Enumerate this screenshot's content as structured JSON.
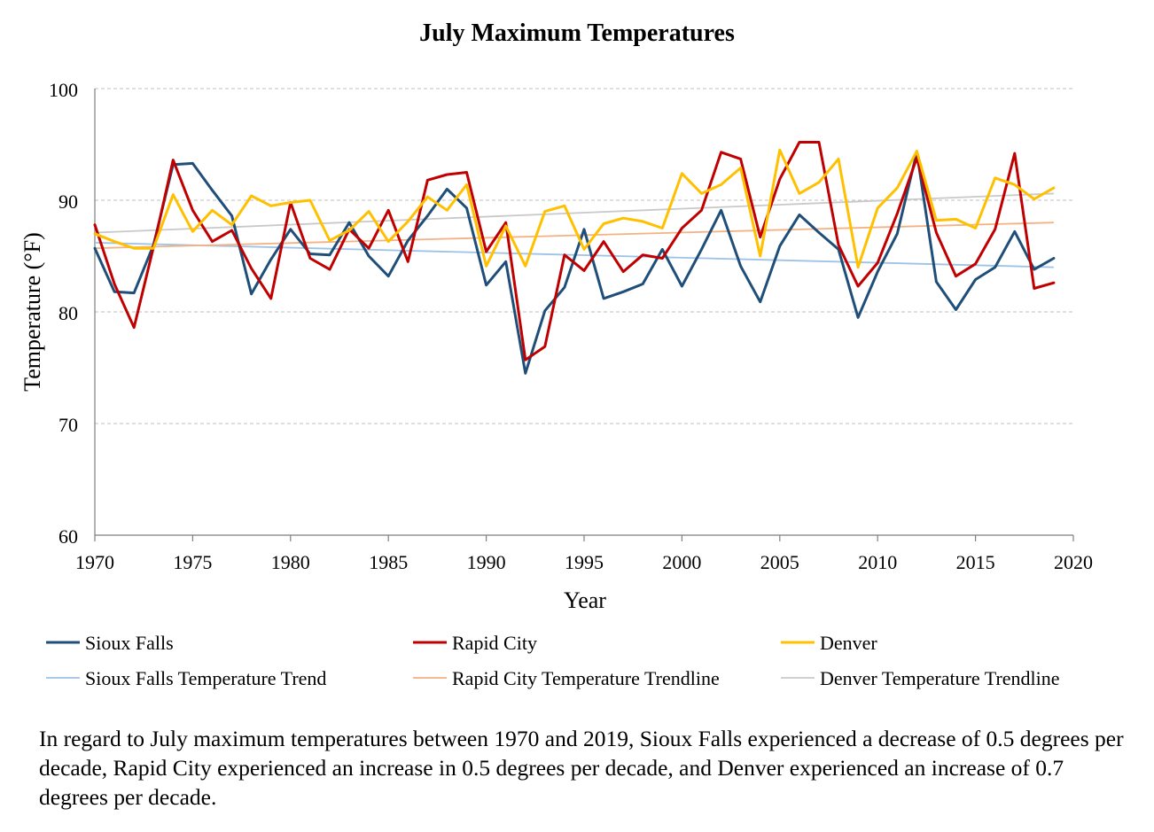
{
  "chart_data": {
    "type": "line",
    "title": "July Maximum Temperatures",
    "xlabel": "Year",
    "ylabel": "Temperature (°F)",
    "xlim": [
      1970,
      2020
    ],
    "ylim": [
      60,
      100
    ],
    "xticks": [
      1970,
      1975,
      1980,
      1985,
      1990,
      1995,
      2000,
      2005,
      2010,
      2015,
      2020
    ],
    "yticks": [
      60,
      70,
      80,
      90,
      100
    ],
    "grid": "horizontal dashed",
    "legend_position": "bottom",
    "x": [
      1970,
      1971,
      1972,
      1973,
      1974,
      1975,
      1976,
      1977,
      1978,
      1979,
      1980,
      1981,
      1982,
      1983,
      1984,
      1985,
      1986,
      1987,
      1988,
      1989,
      1990,
      1991,
      1992,
      1993,
      1994,
      1995,
      1996,
      1997,
      1998,
      1999,
      2000,
      2001,
      2002,
      2003,
      2004,
      2005,
      2006,
      2007,
      2008,
      2009,
      2010,
      2011,
      2012,
      2013,
      2014,
      2015,
      2016,
      2017,
      2018,
      2019
    ],
    "series": [
      {
        "name": "Sioux Falls",
        "color": "#1f4e79",
        "values": [
          85.7,
          81.8,
          81.7,
          86.0,
          93.2,
          93.3,
          90.9,
          88.6,
          81.6,
          84.7,
          87.4,
          85.2,
          85.1,
          88.0,
          85.0,
          83.2,
          86.4,
          88.6,
          91.0,
          89.3,
          82.4,
          84.5,
          74.5,
          80.1,
          82.2,
          87.4,
          81.2,
          81.8,
          82.5,
          85.6,
          82.3,
          85.6,
          89.1,
          84.1,
          80.9,
          85.9,
          88.7,
          87.1,
          85.6,
          79.5,
          83.6,
          87.0,
          94.3,
          82.7,
          80.2,
          82.9,
          84.0,
          87.2,
          83.8,
          84.8
        ]
      },
      {
        "name": "Rapid City",
        "color": "#c00000",
        "values": [
          87.8,
          82.5,
          78.6,
          85.8,
          93.6,
          89.1,
          86.3,
          87.3,
          83.9,
          81.2,
          89.8,
          84.8,
          83.8,
          87.4,
          85.7,
          89.1,
          84.5,
          91.8,
          92.3,
          92.5,
          85.4,
          88.0,
          75.7,
          76.9,
          85.1,
          83.7,
          86.3,
          83.6,
          85.1,
          84.8,
          87.5,
          89.1,
          94.3,
          93.7,
          86.7,
          91.9,
          95.2,
          95.2,
          86.0,
          82.3,
          84.4,
          88.8,
          93.8,
          87.1,
          83.2,
          84.3,
          87.4,
          94.2,
          82.1,
          82.6
        ]
      },
      {
        "name": "Denver",
        "color": "#ffc000",
        "values": [
          87.0,
          86.3,
          85.7,
          85.7,
          90.5,
          87.2,
          89.1,
          87.8,
          90.4,
          89.5,
          89.8,
          90.0,
          86.4,
          87.3,
          89.0,
          86.3,
          88.1,
          90.3,
          89.1,
          91.4,
          84.1,
          87.7,
          84.1,
          89.0,
          89.5,
          85.6,
          87.9,
          88.4,
          88.1,
          87.5,
          92.4,
          90.6,
          91.4,
          92.9,
          85.0,
          94.5,
          90.6,
          91.6,
          93.7,
          84.0,
          89.3,
          91.1,
          94.4,
          88.2,
          88.3,
          87.5,
          92.0,
          91.4,
          90.1,
          91.1
        ]
      },
      {
        "name": "Sioux Falls Temperature Trend",
        "color": "#9dc3e6",
        "trendline": true,
        "values_at_xlim_ends": {
          "1970": 86.2,
          "2019": 84.0
        }
      },
      {
        "name": "Rapid City Temperature Trendline",
        "color": "#f4b183",
        "trendline": true,
        "values_at_xlim_ends": {
          "1970": 85.7,
          "2019": 88.0
        }
      },
      {
        "name": "Denver Temperature Trendline",
        "color": "#c9c9c9",
        "trendline": true,
        "values_at_xlim_ends": {
          "1970": 87.1,
          "2019": 90.6
        }
      }
    ]
  },
  "caption": "In regard to July maximum temperatures between 1970 and 2019, Sioux Falls experienced a decrease of 0.5 degrees per decade, Rapid City experienced an increase in 0.5 degrees per decade, and Denver experienced an increase of 0.7 degrees per decade."
}
